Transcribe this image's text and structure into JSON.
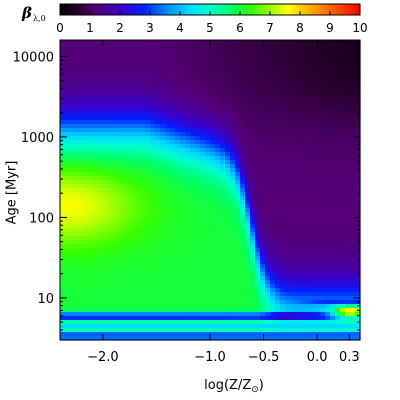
{
  "colorbar": {
    "label_symbol": "β",
    "label_sub": "λ,0",
    "ticks": [
      "0",
      "1",
      "2",
      "3",
      "4",
      "5",
      "6",
      "7",
      "8",
      "9",
      "10"
    ],
    "range": [
      0,
      10
    ],
    "colormap": [
      [
        0.0,
        "#000000"
      ],
      [
        0.06,
        "#2a0030"
      ],
      [
        0.12,
        "#550077"
      ],
      [
        0.2,
        "#3a00cc"
      ],
      [
        0.28,
        "#0020ff"
      ],
      [
        0.36,
        "#0090ff"
      ],
      [
        0.43,
        "#00dcff"
      ],
      [
        0.5,
        "#00ffcc"
      ],
      [
        0.57,
        "#00ff66"
      ],
      [
        0.64,
        "#33ff00"
      ],
      [
        0.7,
        "#99ff00"
      ],
      [
        0.76,
        "#ffff00"
      ],
      [
        0.84,
        "#ffa500"
      ],
      [
        0.92,
        "#ff5000"
      ],
      [
        1.0,
        "#ff0000"
      ]
    ]
  },
  "chart_data": {
    "type": "heatmap",
    "title": "",
    "xlabel_main": "log(Z/Z",
    "xlabel_sub": "⊙",
    "xlabel_end": ")",
    "ylabel": "Age [Myr]",
    "x_ticks": [
      "−2.0",
      "−1.0",
      "−0.5",
      "0.0",
      "0.3"
    ],
    "x_tick_values": [
      -2.0,
      -1.0,
      -0.5,
      0.0,
      0.3
    ],
    "xlim": [
      -2.4,
      0.4
    ],
    "y_ticks": [
      "10",
      "100",
      "1000",
      "10000"
    ],
    "y_tick_values": [
      10,
      100,
      1000,
      10000
    ],
    "y_scale": "log",
    "ylim": [
      3,
      16000
    ],
    "value_description": "beta_lambda,0 as function of metallicity and age",
    "features": {
      "peak_value": 7.5,
      "peak_location": {
        "logZ": -2.3,
        "age_myr": 150
      },
      "high_region": {
        "logZ_range": [
          -2.4,
          -0.6
        ],
        "age_range_myr": [
          12,
          1200
        ],
        "value": 6.0
      },
      "old_ages_value": 1.2,
      "young_band": {
        "age_myr": 4.5,
        "value": 4.5
      },
      "metal_rich_young_spot": {
        "logZ": 0.3,
        "age_myr": 6.5,
        "value": 6.8
      }
    }
  }
}
